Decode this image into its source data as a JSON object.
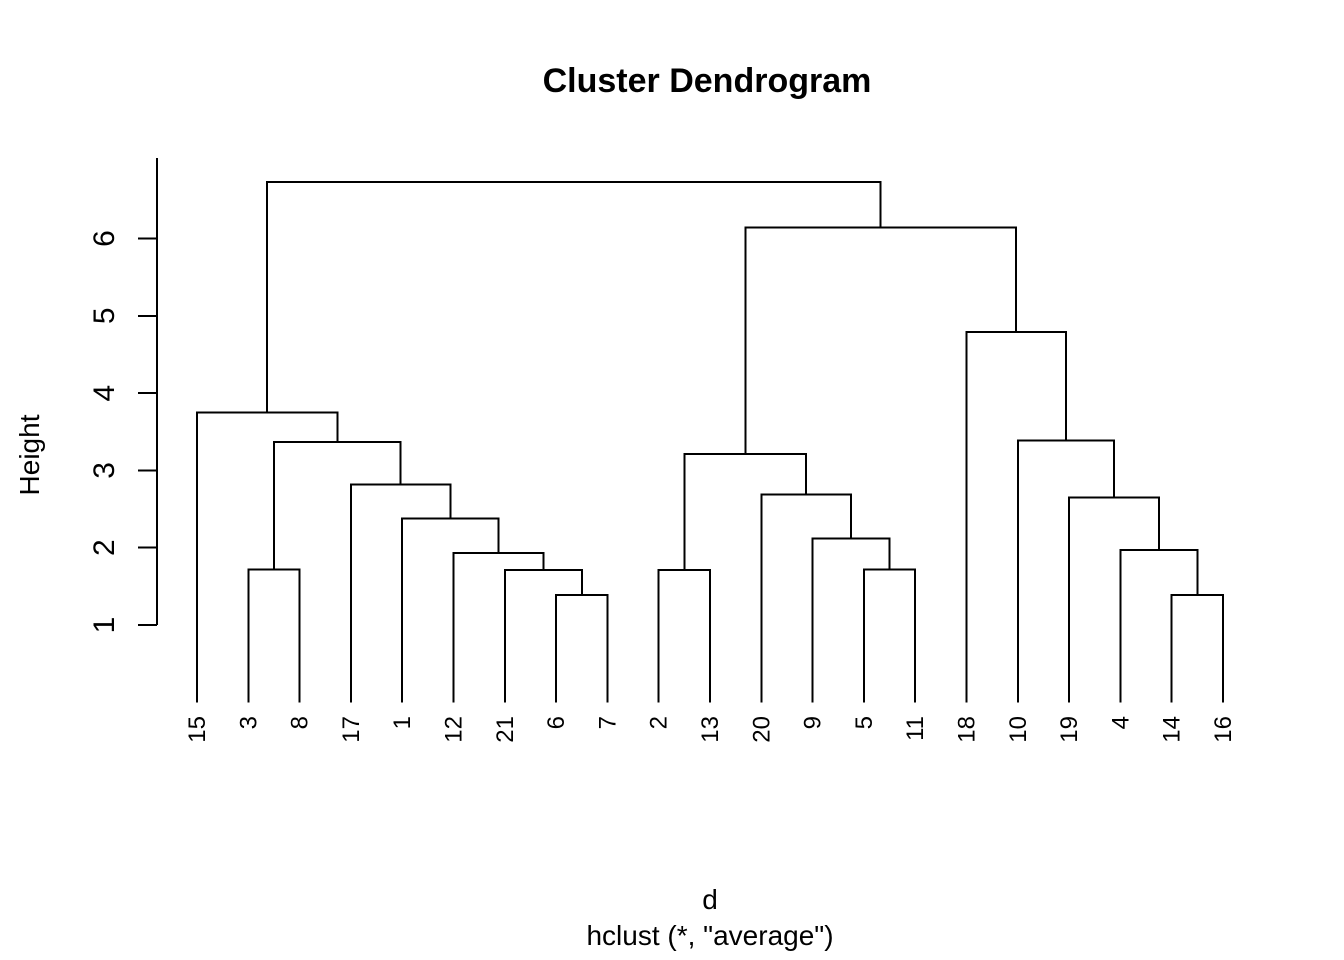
{
  "chart_data": {
    "type": "dendrogram",
    "title": "Cluster Dendrogram",
    "xlabel": "d",
    "sub": "hclust (*, \"average\")",
    "ylabel": "Height",
    "y_ticks": [
      1,
      2,
      3,
      4,
      5,
      6
    ],
    "ylim": [
      0,
      7.04
    ],
    "grid": false,
    "line_color": "#000000",
    "background_color": "#ffffff",
    "text_color": "#000000",
    "leaf_order": [
      "15",
      "3",
      "8",
      "17",
      "1",
      "12",
      "21",
      "6",
      "7",
      "2",
      "13",
      "20",
      "9",
      "5",
      "11",
      "18",
      "10",
      "19",
      "4",
      "14",
      "16"
    ],
    "merges": [
      [
        "6",
        "7",
        1.39
      ],
      [
        "21",
        "#0",
        1.71
      ],
      [
        "12",
        "#1",
        1.93
      ],
      [
        "1",
        "#2",
        2.38
      ],
      [
        "17",
        "#3",
        2.82
      ],
      [
        "3",
        "8",
        1.72
      ],
      [
        "#5",
        "#4",
        3.37
      ],
      [
        "15",
        "#6",
        3.75
      ],
      [
        "2",
        "13",
        1.71
      ],
      [
        "5",
        "11",
        1.72
      ],
      [
        "9",
        "#9",
        2.12
      ],
      [
        "20",
        "#10",
        2.69
      ],
      [
        "#8",
        "#11",
        3.21
      ],
      [
        "14",
        "16",
        1.39
      ],
      [
        "4",
        "#13",
        1.97
      ],
      [
        "19",
        "#14",
        2.65
      ],
      [
        "10",
        "#15",
        3.39
      ],
      [
        "18",
        "#16",
        4.79
      ],
      [
        "#12",
        "#17",
        6.14
      ],
      [
        "#7",
        "#18",
        6.73
      ]
    ]
  }
}
